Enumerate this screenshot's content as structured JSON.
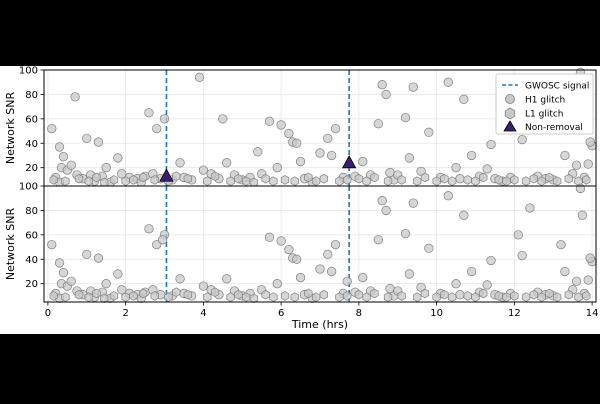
{
  "chart_data": {
    "type": "scatter",
    "ylabel": "Network SNR",
    "xlabel": "Time (hrs)",
    "xlim": [
      -0.1,
      14.1
    ],
    "ylim": [
      5,
      100
    ],
    "x_ticks": [
      0,
      2,
      4,
      6,
      8,
      10,
      12,
      14
    ],
    "y_ticks": [
      20,
      40,
      60,
      80,
      100
    ],
    "grid": true,
    "legend_position": "top-right",
    "legend": {
      "gwosc": "GWOSC signal",
      "h1": "H1 glitch",
      "l1": "L1 glitch",
      "nonremoval": "Non-removal"
    },
    "colors": {
      "signal_line": "#1f77b4",
      "glitch_fill": "#c8c8c8",
      "glitch_edge": "#808080",
      "nonremoval_fill": "#3b1f6e"
    },
    "signals_hrs": [
      3.05,
      7.75
    ],
    "panels": [
      {
        "name": "top",
        "h1_glitches": [
          [
            0.1,
            52
          ],
          [
            0.2,
            12
          ],
          [
            0.3,
            8
          ],
          [
            0.3,
            37
          ],
          [
            0.4,
            29
          ],
          [
            0.35,
            20
          ],
          [
            0.5,
            18
          ],
          [
            0.6,
            22
          ],
          [
            0.7,
            78
          ],
          [
            0.75,
            14
          ],
          [
            0.9,
            11
          ],
          [
            1.0,
            44
          ],
          [
            1.1,
            14
          ],
          [
            1.2,
            9
          ],
          [
            1.3,
            41
          ],
          [
            1.4,
            13
          ],
          [
            1.5,
            20
          ],
          [
            1.6,
            8
          ],
          [
            1.8,
            28
          ],
          [
            1.9,
            15
          ],
          [
            2.1,
            12
          ],
          [
            2.3,
            11
          ],
          [
            2.4,
            8
          ],
          [
            2.5,
            13
          ],
          [
            2.6,
            65
          ],
          [
            2.7,
            15
          ],
          [
            2.8,
            52
          ],
          [
            2.9,
            11
          ],
          [
            3.0,
            60
          ],
          [
            3.2,
            10
          ],
          [
            3.4,
            24
          ],
          [
            3.5,
            12
          ],
          [
            3.7,
            10
          ],
          [
            3.9,
            94
          ],
          [
            4.0,
            18
          ],
          [
            4.2,
            15
          ],
          [
            4.4,
            11
          ],
          [
            4.5,
            60
          ],
          [
            4.6,
            24
          ],
          [
            4.8,
            14
          ],
          [
            5.0,
            10
          ],
          [
            5.2,
            12
          ],
          [
            5.4,
            33
          ],
          [
            5.5,
            15
          ],
          [
            5.7,
            58
          ],
          [
            5.9,
            20
          ],
          [
            6.0,
            55
          ],
          [
            6.2,
            48
          ],
          [
            6.3,
            41
          ],
          [
            6.4,
            40
          ],
          [
            6.5,
            25
          ],
          [
            6.6,
            11
          ],
          [
            6.8,
            8
          ],
          [
            7.0,
            32
          ],
          [
            7.2,
            44
          ],
          [
            7.3,
            30
          ],
          [
            7.4,
            52
          ],
          [
            7.6,
            12
          ],
          [
            7.9,
            13
          ],
          [
            8.1,
            25
          ],
          [
            8.3,
            14
          ],
          [
            8.5,
            56
          ],
          [
            8.6,
            88
          ],
          [
            8.7,
            80
          ],
          [
            8.8,
            16
          ],
          [
            8.9,
            10
          ],
          [
            9.0,
            14
          ],
          [
            9.2,
            61
          ],
          [
            9.3,
            28
          ],
          [
            9.4,
            86
          ],
          [
            9.6,
            17
          ],
          [
            9.8,
            49
          ],
          [
            10.1,
            12
          ],
          [
            10.3,
            90
          ],
          [
            10.5,
            20
          ],
          [
            10.6,
            11
          ],
          [
            10.7,
            76
          ],
          [
            10.9,
            30
          ],
          [
            11.1,
            13
          ],
          [
            11.3,
            19
          ],
          [
            11.4,
            39
          ],
          [
            11.5,
            11
          ],
          [
            11.7,
            9
          ],
          [
            11.9,
            12
          ],
          [
            12.1,
            60
          ],
          [
            12.2,
            43
          ],
          [
            12.4,
            82
          ],
          [
            12.6,
            13
          ],
          [
            12.8,
            11
          ],
          [
            13.0,
            10
          ],
          [
            13.2,
            52
          ],
          [
            13.3,
            30
          ],
          [
            13.5,
            15
          ],
          [
            13.6,
            22
          ],
          [
            13.7,
            98
          ],
          [
            13.8,
            12
          ],
          [
            13.9,
            23
          ],
          [
            14.0,
            38
          ],
          [
            13.95,
            41
          ]
        ],
        "l1_glitches": [
          [
            0.15,
            10
          ],
          [
            0.45,
            9
          ],
          [
            0.8,
            11
          ],
          [
            1.05,
            9
          ],
          [
            1.25,
            12
          ],
          [
            1.45,
            8
          ],
          [
            1.7,
            10
          ],
          [
            2.0,
            9
          ],
          [
            2.2,
            10
          ],
          [
            2.45,
            12
          ],
          [
            2.75,
            10
          ],
          [
            3.1,
            9
          ],
          [
            3.3,
            13
          ],
          [
            3.6,
            11
          ],
          [
            4.1,
            9
          ],
          [
            4.3,
            13
          ],
          [
            4.7,
            9
          ],
          [
            4.9,
            11
          ],
          [
            5.1,
            9
          ],
          [
            5.3,
            8
          ],
          [
            5.6,
            11
          ],
          [
            5.8,
            9
          ],
          [
            6.1,
            10
          ],
          [
            6.35,
            9
          ],
          [
            6.7,
            12
          ],
          [
            6.9,
            9
          ],
          [
            7.1,
            11
          ],
          [
            7.5,
            9
          ],
          [
            7.7,
            10
          ],
          [
            8.0,
            11
          ],
          [
            8.2,
            9
          ],
          [
            8.4,
            12
          ],
          [
            8.75,
            9
          ],
          [
            9.1,
            10
          ],
          [
            9.5,
            9
          ],
          [
            9.7,
            12
          ],
          [
            10.0,
            9
          ],
          [
            10.2,
            11
          ],
          [
            10.4,
            9
          ],
          [
            10.8,
            10
          ],
          [
            11.0,
            9
          ],
          [
            11.2,
            12
          ],
          [
            11.6,
            10
          ],
          [
            11.8,
            9
          ],
          [
            12.0,
            10
          ],
          [
            12.3,
            9
          ],
          [
            12.5,
            11
          ],
          [
            12.7,
            9
          ],
          [
            12.9,
            12
          ],
          [
            13.1,
            9
          ],
          [
            13.4,
            11
          ],
          [
            13.65,
            9
          ],
          [
            13.85,
            10
          ]
        ],
        "nonremoval": [
          [
            3.05,
            13
          ],
          [
            7.75,
            24
          ]
        ]
      },
      {
        "name": "bottom",
        "h1_glitches": [
          [
            0.1,
            52
          ],
          [
            0.2,
            12
          ],
          [
            0.3,
            8
          ],
          [
            0.3,
            37
          ],
          [
            0.4,
            29
          ],
          [
            0.35,
            20
          ],
          [
            0.5,
            18
          ],
          [
            0.6,
            22
          ],
          [
            0.75,
            14
          ],
          [
            0.9,
            11
          ],
          [
            1.0,
            44
          ],
          [
            1.1,
            14
          ],
          [
            1.2,
            9
          ],
          [
            1.3,
            41
          ],
          [
            1.4,
            13
          ],
          [
            1.5,
            20
          ],
          [
            1.6,
            8
          ],
          [
            1.8,
            28
          ],
          [
            1.9,
            15
          ],
          [
            2.1,
            12
          ],
          [
            2.3,
            11
          ],
          [
            2.4,
            8
          ],
          [
            2.5,
            13
          ],
          [
            2.6,
            65
          ],
          [
            2.7,
            15
          ],
          [
            2.8,
            52
          ],
          [
            2.9,
            11
          ],
          [
            3.0,
            60
          ],
          [
            2.95,
            56
          ],
          [
            3.2,
            10
          ],
          [
            3.4,
            24
          ],
          [
            3.5,
            12
          ],
          [
            3.7,
            10
          ],
          [
            4.0,
            18
          ],
          [
            4.2,
            15
          ],
          [
            4.4,
            11
          ],
          [
            4.6,
            24
          ],
          [
            4.8,
            14
          ],
          [
            5.0,
            10
          ],
          [
            5.2,
            12
          ],
          [
            5.5,
            15
          ],
          [
            5.7,
            58
          ],
          [
            5.9,
            20
          ],
          [
            6.0,
            55
          ],
          [
            6.2,
            48
          ],
          [
            6.3,
            41
          ],
          [
            6.4,
            40
          ],
          [
            6.5,
            25
          ],
          [
            6.6,
            11
          ],
          [
            6.8,
            8
          ],
          [
            7.0,
            32
          ],
          [
            7.2,
            44
          ],
          [
            7.3,
            30
          ],
          [
            7.4,
            52
          ],
          [
            7.6,
            12
          ],
          [
            7.7,
            22
          ],
          [
            7.9,
            13
          ],
          [
            8.1,
            25
          ],
          [
            8.3,
            14
          ],
          [
            8.5,
            56
          ],
          [
            8.6,
            88
          ],
          [
            8.7,
            80
          ],
          [
            8.8,
            16
          ],
          [
            8.9,
            10
          ],
          [
            9.0,
            14
          ],
          [
            9.2,
            61
          ],
          [
            9.3,
            28
          ],
          [
            9.4,
            86
          ],
          [
            9.6,
            17
          ],
          [
            9.8,
            49
          ],
          [
            10.1,
            12
          ],
          [
            10.3,
            92
          ],
          [
            10.5,
            20
          ],
          [
            10.6,
            11
          ],
          [
            10.7,
            76
          ],
          [
            10.9,
            30
          ],
          [
            11.1,
            13
          ],
          [
            11.3,
            19
          ],
          [
            11.4,
            39
          ],
          [
            11.5,
            11
          ],
          [
            11.7,
            9
          ],
          [
            11.9,
            12
          ],
          [
            12.1,
            60
          ],
          [
            12.2,
            43
          ],
          [
            12.4,
            82
          ],
          [
            12.6,
            13
          ],
          [
            12.8,
            11
          ],
          [
            13.0,
            10
          ],
          [
            13.2,
            52
          ],
          [
            13.3,
            30
          ],
          [
            13.5,
            15
          ],
          [
            13.6,
            22
          ],
          [
            13.7,
            98
          ],
          [
            13.8,
            12
          ],
          [
            13.9,
            23
          ],
          [
            14.0,
            38
          ],
          [
            13.75,
            76
          ],
          [
            13.95,
            41
          ]
        ],
        "l1_glitches": [
          [
            0.15,
            10
          ],
          [
            0.45,
            9
          ],
          [
            0.8,
            11
          ],
          [
            1.05,
            9
          ],
          [
            1.25,
            12
          ],
          [
            1.45,
            8
          ],
          [
            1.7,
            10
          ],
          [
            2.0,
            9
          ],
          [
            2.2,
            10
          ],
          [
            2.45,
            12
          ],
          [
            2.75,
            10
          ],
          [
            3.1,
            9
          ],
          [
            3.3,
            13
          ],
          [
            3.6,
            11
          ],
          [
            4.1,
            9
          ],
          [
            4.3,
            13
          ],
          [
            4.7,
            9
          ],
          [
            4.9,
            11
          ],
          [
            5.1,
            9
          ],
          [
            5.3,
            8
          ],
          [
            5.6,
            11
          ],
          [
            5.8,
            9
          ],
          [
            6.1,
            10
          ],
          [
            6.35,
            9
          ],
          [
            6.7,
            12
          ],
          [
            6.9,
            9
          ],
          [
            7.1,
            11
          ],
          [
            7.5,
            9
          ],
          [
            7.7,
            10
          ],
          [
            8.0,
            11
          ],
          [
            8.2,
            9
          ],
          [
            8.4,
            12
          ],
          [
            8.75,
            9
          ],
          [
            9.1,
            10
          ],
          [
            9.5,
            9
          ],
          [
            9.7,
            12
          ],
          [
            10.0,
            9
          ],
          [
            10.2,
            11
          ],
          [
            10.4,
            9
          ],
          [
            10.8,
            10
          ],
          [
            11.0,
            9
          ],
          [
            11.2,
            12
          ],
          [
            11.6,
            10
          ],
          [
            11.8,
            9
          ],
          [
            12.0,
            10
          ],
          [
            12.3,
            9
          ],
          [
            12.5,
            11
          ],
          [
            12.7,
            9
          ],
          [
            12.9,
            12
          ],
          [
            13.1,
            9
          ],
          [
            13.4,
            11
          ],
          [
            13.65,
            9
          ],
          [
            13.85,
            10
          ]
        ],
        "nonremoval": []
      }
    ]
  }
}
